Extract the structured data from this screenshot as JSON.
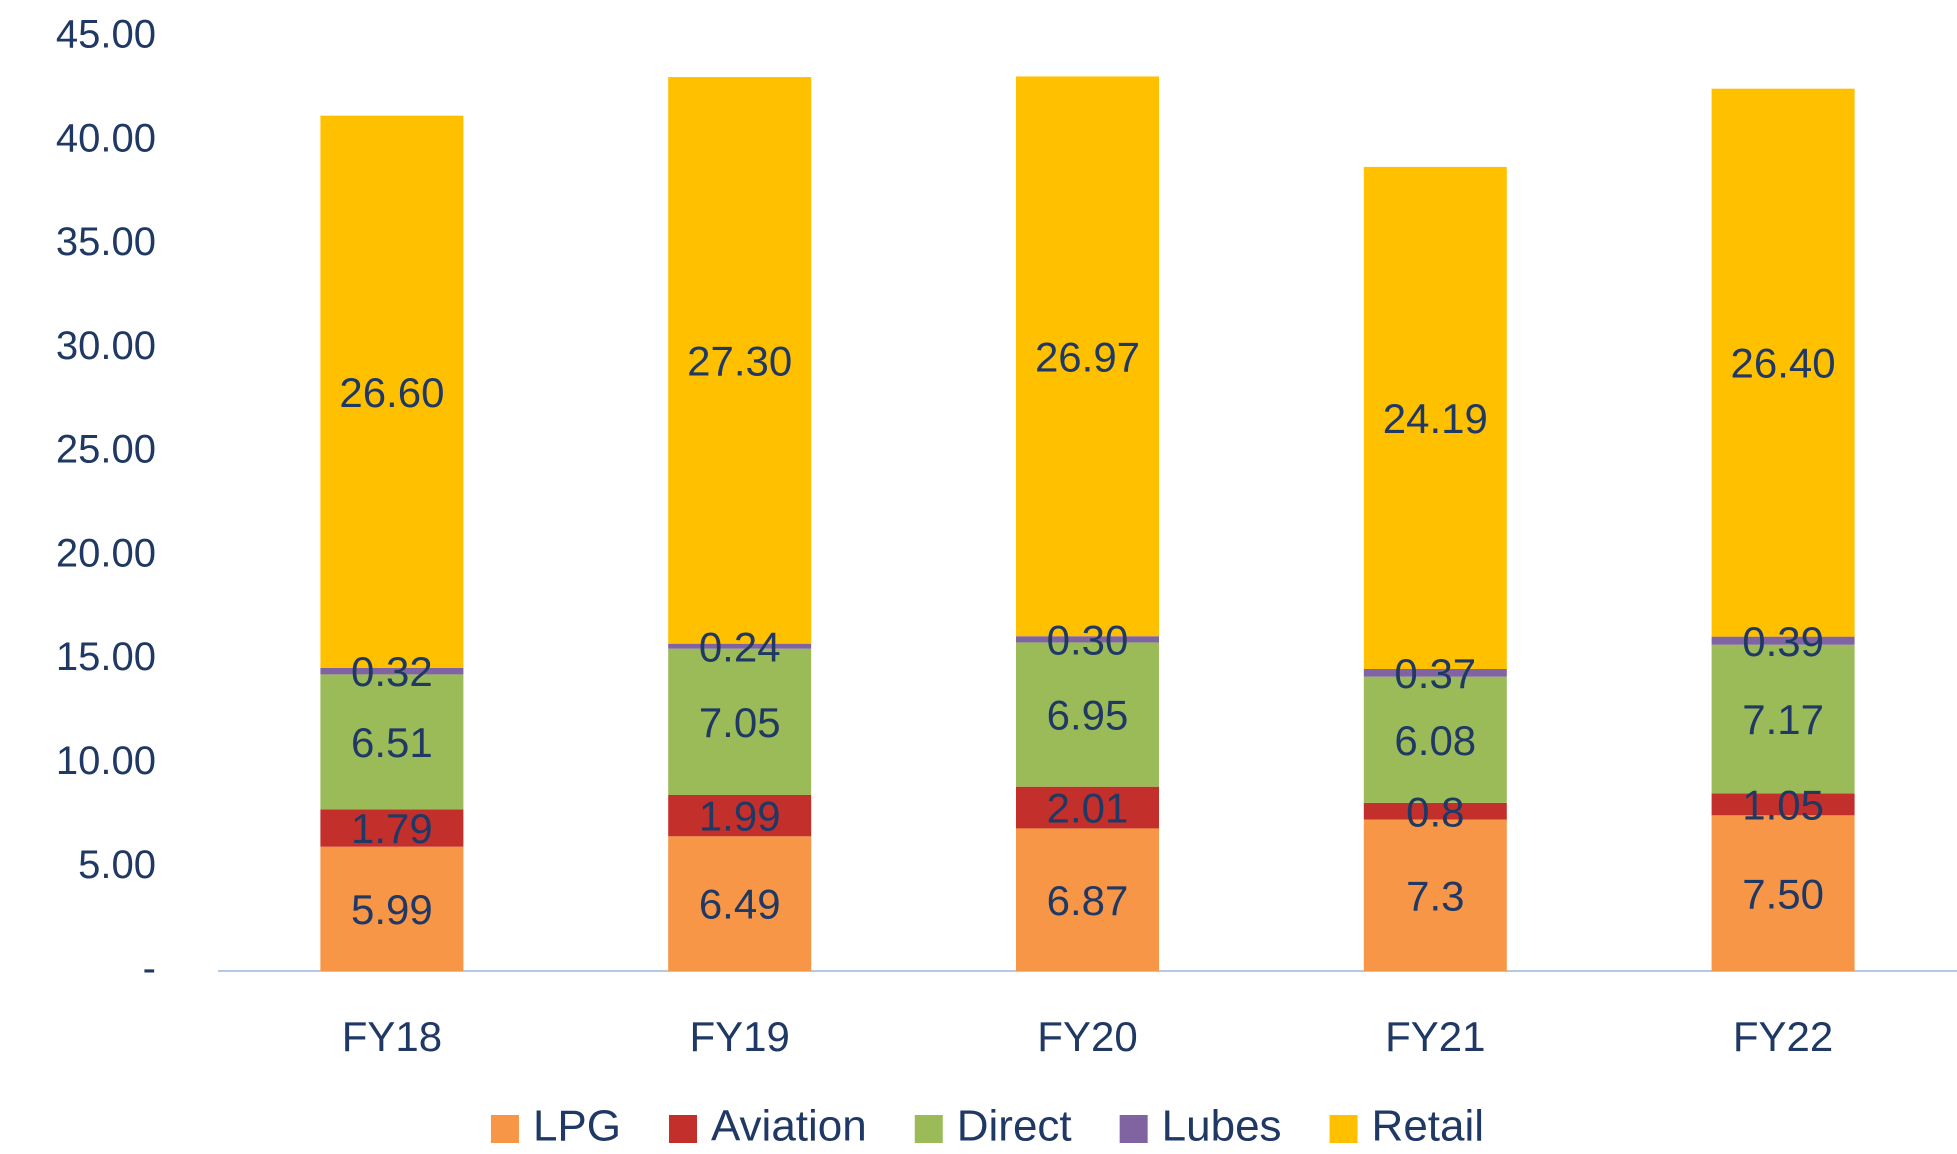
{
  "chart_data": {
    "type": "stacked_bar",
    "categories": [
      "FY18",
      "FY19",
      "FY20",
      "FY21",
      "FY22"
    ],
    "series": [
      {
        "name": "LPG",
        "color": "#f79646",
        "values": [
          5.99,
          6.49,
          6.87,
          7.3,
          7.5
        ],
        "value_labels": [
          "5.99",
          "6.49",
          "6.87",
          "7.3",
          "7.50"
        ]
      },
      {
        "name": "Aviation",
        "color": "#c3302c",
        "values": [
          1.79,
          1.99,
          2.01,
          0.8,
          1.05
        ],
        "value_labels": [
          "1.79",
          "1.99",
          "2.01",
          "0.8",
          "1.05"
        ]
      },
      {
        "name": "Direct",
        "color": "#9bbb59",
        "values": [
          6.51,
          7.05,
          6.95,
          6.08,
          7.17
        ],
        "value_labels": [
          "6.51",
          "7.05",
          "6.95",
          "6.08",
          "7.17"
        ]
      },
      {
        "name": "Lubes",
        "color": "#8064a2",
        "values": [
          0.32,
          0.24,
          0.3,
          0.37,
          0.39
        ],
        "value_labels": [
          "0.32",
          "0.24",
          "0.30",
          "0.37",
          "0.39"
        ]
      },
      {
        "name": "Retail",
        "color": "#ffc000",
        "values": [
          26.6,
          27.3,
          26.97,
          24.19,
          26.4
        ],
        "value_labels": [
          "26.60",
          "27.30",
          "26.97",
          "24.19",
          "26.40"
        ]
      }
    ],
    "ylim": [
      0,
      45
    ],
    "yticks": [
      {
        "value": 0,
        "label": "-"
      },
      {
        "value": 5,
        "label": "5.00"
      },
      {
        "value": 10,
        "label": "10.00"
      },
      {
        "value": 15,
        "label": "15.00"
      },
      {
        "value": 20,
        "label": "20.00"
      },
      {
        "value": 25,
        "label": "25.00"
      },
      {
        "value": 30,
        "label": "30.00"
      },
      {
        "value": 35,
        "label": "35.00"
      },
      {
        "value": 40,
        "label": "40.00"
      },
      {
        "value": 45,
        "label": "45.00"
      }
    ],
    "grid": false,
    "legend": "bottom"
  }
}
